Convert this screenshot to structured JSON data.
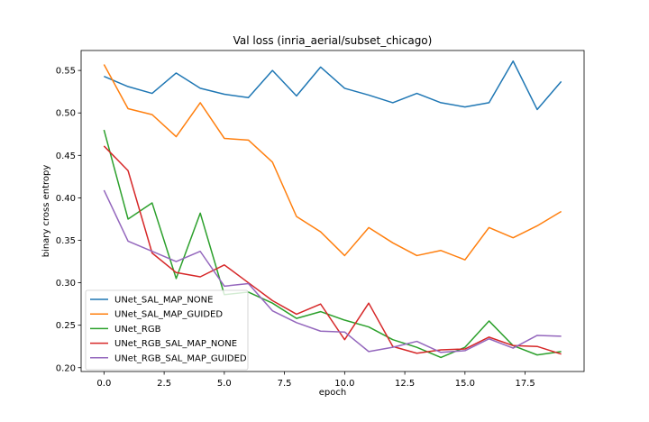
{
  "chart_data": {
    "type": "line",
    "title": "Val loss (inria_aerial/subset_chicago)",
    "xlabel": "epoch",
    "ylabel": "binary cross entropy",
    "xlim": [
      -0.95,
      19.95
    ],
    "ylim": [
      0.1955,
      0.5735
    ],
    "xticks": [
      0.0,
      2.5,
      5.0,
      7.5,
      10.0,
      12.5,
      15.0,
      17.5
    ],
    "xtick_labels": [
      "0.0",
      "2.5",
      "5.0",
      "7.5",
      "10.0",
      "12.5",
      "15.0",
      "17.5"
    ],
    "yticks": [
      0.2,
      0.25,
      0.3,
      0.35,
      0.4,
      0.45,
      0.5,
      0.55
    ],
    "ytick_labels": [
      "0.20",
      "0.25",
      "0.30",
      "0.35",
      "0.40",
      "0.45",
      "0.50",
      "0.55"
    ],
    "grid": false,
    "legend_position": "lower-left",
    "x": [
      0,
      1,
      2,
      3,
      4,
      5,
      6,
      7,
      8,
      9,
      10,
      11,
      12,
      13,
      14,
      15,
      16,
      17,
      18,
      19
    ],
    "series": [
      {
        "name": "UNet_SAL_MAP_NONE",
        "color": "#1f77b4",
        "values": [
          0.543,
          0.531,
          0.523,
          0.547,
          0.529,
          0.522,
          0.518,
          0.55,
          0.52,
          0.554,
          0.529,
          0.521,
          0.512,
          0.523,
          0.512,
          0.507,
          0.512,
          0.561,
          0.504,
          0.537
        ]
      },
      {
        "name": "UNet_SAL_MAP_GUIDED",
        "color": "#ff7f0e",
        "values": [
          0.557,
          0.505,
          0.498,
          0.472,
          0.512,
          0.47,
          0.468,
          0.442,
          0.378,
          0.36,
          0.332,
          0.365,
          0.347,
          0.332,
          0.338,
          0.327,
          0.365,
          0.353,
          0.367,
          0.384
        ]
      },
      {
        "name": "UNet_RGB",
        "color": "#2ca02c",
        "values": [
          0.48,
          0.375,
          0.394,
          0.305,
          0.382,
          0.286,
          0.289,
          0.276,
          0.258,
          0.266,
          0.256,
          0.248,
          0.233,
          0.224,
          0.212,
          0.224,
          0.255,
          0.226,
          0.215,
          0.219
        ]
      },
      {
        "name": "UNet_RGB_SAL_MAP_NONE",
        "color": "#d62728",
        "values": [
          0.461,
          0.432,
          0.335,
          0.312,
          0.307,
          0.321,
          0.3,
          0.279,
          0.263,
          0.275,
          0.233,
          0.276,
          0.225,
          0.217,
          0.221,
          0.222,
          0.236,
          0.226,
          0.225,
          0.216
        ]
      },
      {
        "name": "UNet_RGB_SAL_MAP_GUIDED",
        "color": "#9467bd",
        "values": [
          0.409,
          0.349,
          0.337,
          0.325,
          0.337,
          0.296,
          0.299,
          0.267,
          0.253,
          0.243,
          0.242,
          0.219,
          0.224,
          0.231,
          0.218,
          0.22,
          0.234,
          0.223,
          0.238,
          0.237
        ]
      }
    ]
  }
}
